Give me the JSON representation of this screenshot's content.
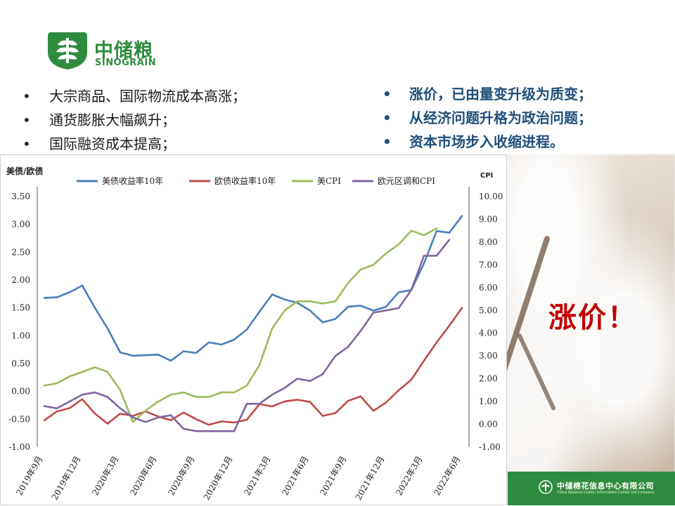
{
  "brand": {
    "name_cn": "中储粮",
    "name_en": "SINOGRAIN"
  },
  "bullets_left": [
    "大宗商品、国际物流成本高涨；",
    "通货膨胀大幅飙升；",
    "国际融资成本提高；"
  ],
  "bullets_right": [
    "涨价，已由量变升级为质变；",
    "从经济问题升格为政治问题；",
    "资本市场步入收缩进程。"
  ],
  "callout": "涨价！",
  "footer": {
    "name_cn": "中储棉花信息中心有限公司",
    "name_en": "China National Cotton Information Center Ltd.Company"
  },
  "colors": {
    "brand_green": "#2e8c3e",
    "right_text_blue": "#1f4e79",
    "callout_red": "#c00000"
  },
  "chart_data": {
    "type": "line",
    "ylabel_left": "美债/欧债",
    "ylabel_right": "CPI",
    "ylim_left": [
      -1.0,
      3.5
    ],
    "ylim_right": [
      -1.0,
      10.0
    ],
    "left_ticks": [
      "3.50",
      "3.00",
      "2.50",
      "2.00",
      "1.50",
      "1.00",
      "0.50",
      "0.00",
      "-0.50",
      "-1.00"
    ],
    "right_ticks": [
      "10.00",
      "9.00",
      "8.00",
      "7.00",
      "6.00",
      "5.00",
      "4.00",
      "3.00",
      "2.00",
      "1.00",
      "0.00",
      "-1.00"
    ],
    "x_tick_labels": [
      "2019年9月",
      "2019年12月",
      "2020年3月",
      "2020年6月",
      "2020年9月",
      "2020年12月",
      "2021年3月",
      "2021年6月",
      "2021年9月",
      "2021年12月",
      "2022年3月",
      "2022年6月"
    ],
    "legend_position": "top",
    "grid": false,
    "series": [
      {
        "name": "美债收益率10年",
        "axis": "left",
        "color": "#4a7ebb",
        "values": [
          1.68,
          1.69,
          1.78,
          1.9,
          1.5,
          1.13,
          0.7,
          0.64,
          0.65,
          0.66,
          0.55,
          0.72,
          0.69,
          0.88,
          0.84,
          0.93,
          1.11,
          1.43,
          1.74,
          1.65,
          1.59,
          1.45,
          1.24,
          1.3,
          1.52,
          1.54,
          1.45,
          1.52,
          1.78,
          1.82,
          2.3,
          2.88,
          2.85,
          3.15
        ]
      },
      {
        "name": "欧债收益率10年",
        "axis": "left",
        "color": "#be4b48",
        "values": [
          -0.52,
          -0.36,
          -0.3,
          -0.14,
          -0.4,
          -0.58,
          -0.4,
          -0.44,
          -0.36,
          -0.45,
          -0.52,
          -0.38,
          -0.5,
          -0.6,
          -0.54,
          -0.56,
          -0.51,
          -0.23,
          -0.27,
          -0.18,
          -0.15,
          -0.19,
          -0.44,
          -0.39,
          -0.17,
          -0.09,
          -0.35,
          -0.2,
          0.02,
          0.21,
          0.55,
          0.88,
          1.18,
          1.5
        ]
      },
      {
        "name": "美CPI",
        "axis": "right",
        "color": "#9bbb59",
        "values": [
          1.7,
          1.8,
          2.1,
          2.3,
          2.5,
          2.3,
          1.5,
          0.1,
          0.6,
          1.0,
          1.3,
          1.4,
          1.2,
          1.2,
          1.4,
          1.4,
          1.7,
          2.6,
          4.2,
          5.0,
          5.4,
          5.4,
          5.3,
          5.4,
          6.2,
          6.8,
          7.0,
          7.5,
          7.9,
          8.5,
          8.3,
          8.6
        ]
      },
      {
        "name": "欧元区调和CPI",
        "axis": "right",
        "color": "#8064a2",
        "values": [
          0.8,
          0.7,
          1.0,
          1.3,
          1.4,
          1.2,
          0.7,
          0.3,
          0.1,
          0.3,
          0.4,
          -0.2,
          -0.3,
          -0.3,
          -0.3,
          -0.3,
          0.9,
          0.9,
          1.3,
          1.6,
          2.0,
          1.9,
          2.2,
          3.0,
          3.4,
          4.1,
          4.9,
          5.0,
          5.1,
          5.9,
          7.4,
          7.4,
          8.1
        ]
      }
    ]
  }
}
